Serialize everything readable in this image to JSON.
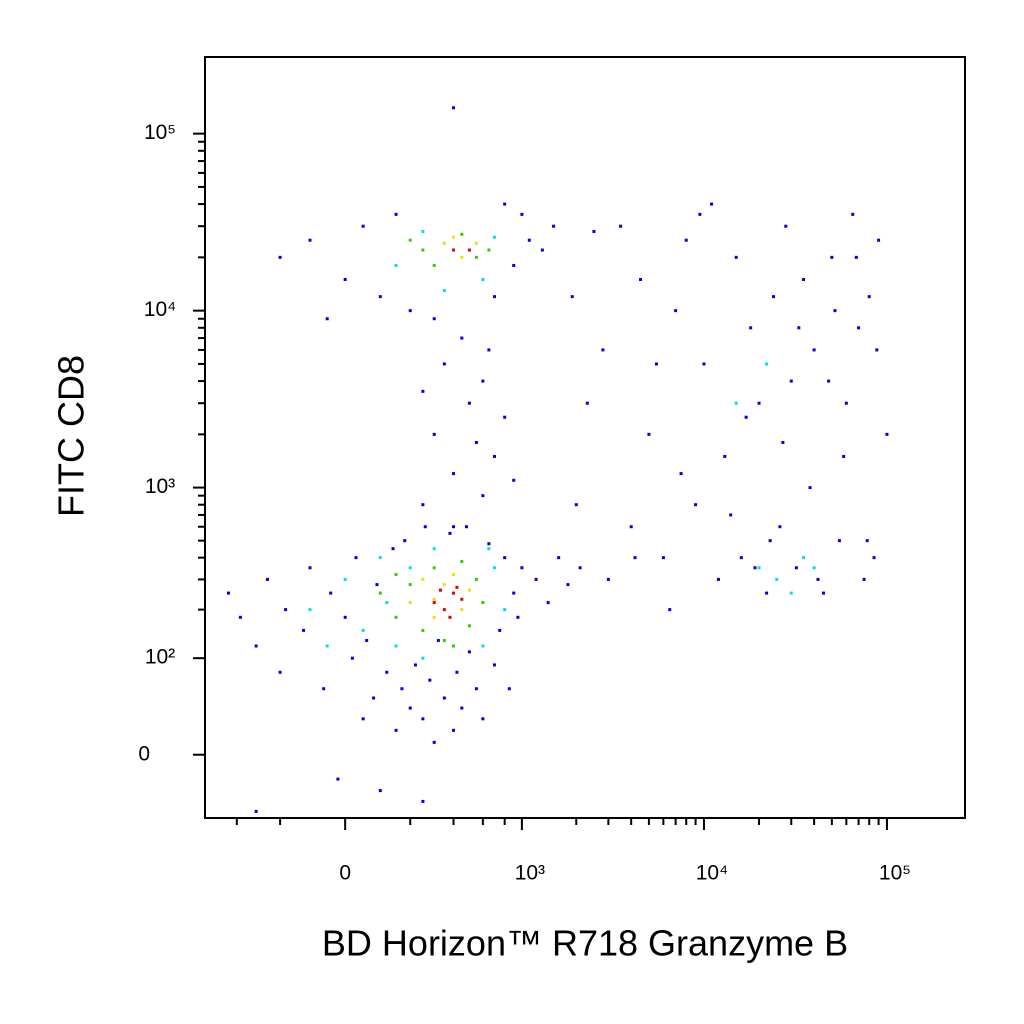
{
  "chart_data": {
    "type": "scatter",
    "x_label": "BD Horizon™ R718  Granzyme B",
    "y_label": "FITC  CD8",
    "xscale": "biexponential",
    "yscale": "biexponential",
    "xlim": [
      -620,
      267000
    ],
    "ylim": [
      -57,
      271000
    ],
    "xticks": [
      0,
      {
        "value": 1000,
        "label": "10³"
      },
      {
        "value": 10000,
        "label": "10⁴"
      },
      {
        "value": 100000,
        "label": "10⁵"
      }
    ],
    "yticks": [
      0,
      {
        "value": 100,
        "label": "10²"
      },
      {
        "value": 1000,
        "label": "10³"
      },
      {
        "value": 10000,
        "label": "10⁴"
      },
      {
        "value": 100000,
        "label": "10⁵"
      }
    ],
    "xminorticks": [
      -400,
      -200,
      200,
      400,
      600,
      800,
      2000,
      3000,
      4000,
      5000,
      6000,
      7000,
      8000,
      9000,
      20000,
      30000,
      40000,
      50000,
      60000,
      70000,
      80000,
      90000
    ],
    "yminorticks": [
      200,
      300,
      400,
      500,
      600,
      700,
      800,
      900,
      2000,
      3000,
      4000,
      5000,
      6000,
      7000,
      8000,
      9000,
      20000,
      30000,
      40000,
      50000,
      60000,
      70000,
      80000,
      90000
    ],
    "series": [
      {
        "color": "#0000e0",
        "x": [
          -450,
          -380,
          -300,
          -250,
          -200,
          -180,
          -120,
          -100,
          -60,
          -40,
          0,
          20,
          30,
          50,
          60,
          80,
          90,
          120,
          140,
          150,
          170,
          180,
          200,
          220,
          250,
          260,
          280,
          300,
          320,
          350,
          380,
          400,
          420,
          450,
          480,
          500,
          550,
          600,
          650,
          700,
          750,
          800,
          850,
          900,
          950,
          1000,
          1200,
          1400,
          1600,
          1800,
          2100,
          -20,
          100,
          250,
          -300,
          250,
          400,
          600,
          300,
          500,
          700,
          350,
          450,
          600,
          250,
          800,
          400,
          550,
          650,
          300,
          900,
          -200,
          -100,
          0,
          50,
          100,
          150,
          200,
          700,
          900,
          1100,
          1300,
          1000,
          1500,
          -50,
          800,
          400,
          3000,
          4000,
          5000,
          6000,
          7000,
          8000,
          9000,
          10000,
          12000,
          13000,
          15000,
          16000,
          18000,
          20000,
          22000,
          24000,
          26000,
          28000,
          30000,
          32000,
          35000,
          38000,
          40000,
          45000,
          50000,
          55000,
          60000,
          65000,
          70000,
          75000,
          80000,
          85000,
          90000,
          3500,
          4500,
          5500,
          6500,
          7500,
          2500,
          2000,
          2800,
          11000,
          14000,
          17000,
          19000,
          23000,
          27000,
          33000,
          42000,
          48000,
          52000,
          58000,
          68000,
          78000,
          88000,
          100000,
          9500,
          4200,
          1900,
          2300
        ],
        "y": [
          250,
          180,
          120,
          300,
          80,
          200,
          150,
          350,
          60,
          250,
          180,
          100,
          400,
          30,
          130,
          50,
          280,
          80,
          450,
          20,
          60,
          500,
          40,
          90,
          30,
          600,
          70,
          10,
          130,
          50,
          550,
          20,
          80,
          40,
          600,
          110,
          60,
          30,
          480,
          90,
          150,
          400,
          60,
          250,
          180,
          350,
          300,
          220,
          400,
          280,
          350,
          -20,
          -30,
          -40,
          -50,
          800,
          1200,
          900,
          2000,
          3000,
          1500,
          5000,
          7000,
          4000,
          3500,
          2500,
          600,
          1800,
          6000,
          9000,
          1100,
          20000,
          25000,
          15000,
          30000,
          12000,
          35000,
          10000,
          12000,
          18000,
          25000,
          22000,
          35000,
          30000,
          9000,
          40000,
          140000,
          300,
          600,
          2000,
          400,
          10000,
          25000,
          800,
          5000,
          300,
          1500,
          20000,
          400,
          8000,
          3000,
          250,
          12000,
          600,
          30000,
          4000,
          350,
          15000,
          1000,
          6000,
          250,
          20000,
          500,
          3000,
          35000,
          8000,
          300,
          12000,
          400,
          25000,
          30000,
          15000,
          5000,
          200,
          1200,
          28000,
          800,
          6000,
          40000,
          700,
          2500,
          350,
          500,
          1800,
          8000,
          300,
          4000,
          10000,
          1500,
          20000,
          500,
          6000,
          2000,
          35000,
          400,
          12000,
          3000
        ]
      },
      {
        "color": "#00e0e0",
        "x": [
          -100,
          0,
          50,
          100,
          150,
          200,
          250,
          300,
          600,
          700,
          800,
          -50,
          650,
          120,
          150,
          250,
          600,
          700,
          350,
          25000,
          30000,
          20000,
          35000,
          22000,
          40000,
          15000
        ],
        "y": [
          200,
          300,
          150,
          400,
          120,
          350,
          100,
          450,
          120,
          350,
          200,
          120,
          450,
          220,
          18000,
          28000,
          15000,
          26000,
          13000,
          300,
          250,
          350,
          400,
          5000,
          350,
          3000
        ]
      },
      {
        "color": "#30d000",
        "x": [
          100,
          150,
          200,
          250,
          300,
          350,
          450,
          500,
          550,
          600,
          150,
          400,
          250,
          300,
          450,
          550,
          650,
          200
        ],
        "y": [
          250,
          180,
          280,
          150,
          350,
          130,
          380,
          160,
          300,
          220,
          320,
          120,
          22000,
          18000,
          27000,
          20000,
          22000,
          25000
        ]
      },
      {
        "color": "#f0e000",
        "x": [
          200,
          250,
          300,
          350,
          450,
          500,
          400,
          300,
          350,
          450,
          550,
          400
        ],
        "y": [
          220,
          300,
          180,
          280,
          200,
          260,
          320,
          230,
          24000,
          20000,
          24000,
          26000
        ]
      },
      {
        "color": "#e00000",
        "x": [
          300,
          350,
          400,
          450,
          380,
          420,
          330,
          500,
          400
        ],
        "y": [
          220,
          200,
          250,
          230,
          180,
          270,
          260,
          22000,
          22000
        ]
      }
    ]
  }
}
